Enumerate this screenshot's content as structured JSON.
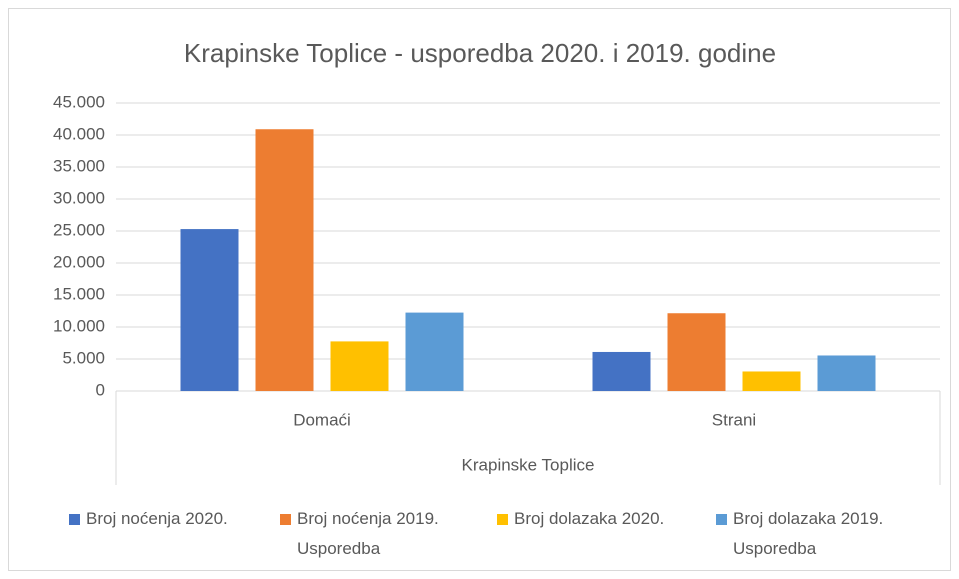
{
  "chart_data": {
    "type": "bar",
    "title": "Krapinske Toplice - usporedba 2020. i 2019. godine",
    "xlabel": "Krapinske Toplice",
    "categories": [
      "Domaći",
      "Strani"
    ],
    "series": [
      {
        "name": "Broj noćenja 2020.",
        "color": "#4472c4",
        "values": [
          25300,
          6100
        ]
      },
      {
        "name": "Broj noćenja 2019. Usporedba",
        "color": "#ed7d31",
        "values": [
          40900,
          12150
        ]
      },
      {
        "name": "Broj dolazaka 2020.",
        "color": "#ffc000",
        "values": [
          7750,
          3050
        ]
      },
      {
        "name": "Broj dolazaka 2019. Usporedba",
        "color": "#5b9bd5",
        "values": [
          12250,
          5550
        ]
      }
    ],
    "ylim": [
      0,
      45000
    ],
    "yticks": [
      0,
      {
        "value": 5000,
        "label": "5.000"
      },
      {
        "value": 10000,
        "label": "10.000"
      },
      {
        "value": 15000,
        "label": "15.000"
      },
      {
        "value": 20000,
        "label": "20.000"
      },
      {
        "value": 25000,
        "label": "25.000"
      },
      {
        "value": 30000,
        "label": "30.000"
      },
      {
        "value": 35000,
        "label": "35.000"
      },
      {
        "value": 40000,
        "label": "40.000"
      },
      {
        "value": 45000,
        "label": "45.000"
      }
    ],
    "grid": true,
    "legend": "bottom"
  }
}
